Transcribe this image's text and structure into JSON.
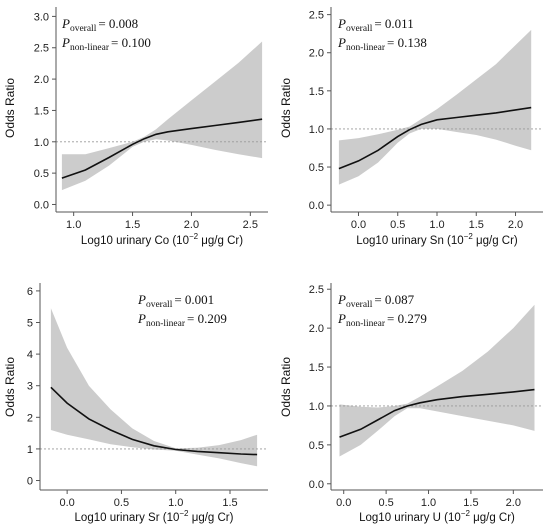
{
  "chart_data": [
    {
      "type": "line",
      "ylabel": "Odds Ratio",
      "xlabel_prefix": "Log10 urinary Co (10",
      "xlabel_suffix": " μg/g Cr)",
      "xlabel_sup": "−2",
      "xlim": [
        0.85,
        2.65
      ],
      "ylim": [
        -0.12,
        3.15
      ],
      "xticks": [
        1.0,
        1.5,
        2.0,
        2.5
      ],
      "xtick_labels": [
        "1.0",
        "1.5",
        "2.0",
        "2.5"
      ],
      "yticks": [
        0.0,
        0.5,
        1.0,
        1.5,
        2.0,
        2.5,
        3.0
      ],
      "ytick_labels": [
        "0.0",
        "0.5",
        "1.0",
        "1.5",
        "2.0",
        "2.5",
        "3.0"
      ],
      "reference_line": 1.0,
      "p_position": "top-left",
      "p_overall_label": "P",
      "p_overall_sub": "overall",
      "p_overall": "= 0.008",
      "p_nonlinear_label": "P",
      "p_nonlinear_sub": "non-linear",
      "p_nonlinear": "= 0.100",
      "x": [
        0.9,
        1.1,
        1.3,
        1.5,
        1.6,
        1.7,
        1.8,
        2.0,
        2.2,
        2.4,
        2.6
      ],
      "or": [
        0.42,
        0.55,
        0.75,
        0.96,
        1.05,
        1.12,
        1.16,
        1.21,
        1.26,
        1.31,
        1.36
      ],
      "lower": [
        0.23,
        0.38,
        0.62,
        0.92,
        1.0,
        1.04,
        1.02,
        0.95,
        0.87,
        0.8,
        0.74
      ],
      "upper": [
        0.8,
        0.8,
        0.9,
        1.0,
        1.08,
        1.2,
        1.36,
        1.66,
        1.96,
        2.26,
        2.6
      ]
    },
    {
      "type": "line",
      "ylabel": "Odds Ratio",
      "xlabel_prefix": "Log10 urinary Sn (10",
      "xlabel_suffix": " μg/g Cr)",
      "xlabel_sup": "−2",
      "xlim": [
        -0.35,
        2.35
      ],
      "ylim": [
        -0.09,
        2.6
      ],
      "xticks": [
        0.0,
        0.5,
        1.0,
        1.5,
        2.0
      ],
      "xtick_labels": [
        "0.0",
        "0.5",
        "1.0",
        "1.5",
        "2.0"
      ],
      "yticks": [
        0.0,
        0.5,
        1.0,
        1.5,
        2.0,
        2.5
      ],
      "ytick_labels": [
        "0.0",
        "0.5",
        "1.0",
        "1.5",
        "2.0",
        "2.5"
      ],
      "reference_line": 1.0,
      "p_position": "top-left",
      "p_overall_label": "P",
      "p_overall_sub": "overall",
      "p_overall": "= 0.011",
      "p_nonlinear_label": "P",
      "p_nonlinear_sub": "non-linear",
      "p_nonlinear": "= 0.138",
      "x": [
        -0.25,
        0.0,
        0.25,
        0.5,
        0.65,
        0.8,
        1.0,
        1.25,
        1.5,
        1.75,
        2.0,
        2.2
      ],
      "or": [
        0.48,
        0.58,
        0.72,
        0.9,
        0.99,
        1.06,
        1.12,
        1.15,
        1.18,
        1.21,
        1.25,
        1.28
      ],
      "lower": [
        0.27,
        0.38,
        0.56,
        0.82,
        0.94,
        1.0,
        1.0,
        0.96,
        0.92,
        0.86,
        0.78,
        0.72
      ],
      "upper": [
        0.85,
        0.88,
        0.93,
        0.99,
        1.03,
        1.13,
        1.26,
        1.45,
        1.65,
        1.85,
        2.1,
        2.3
      ]
    },
    {
      "type": "line",
      "ylabel": "Odds Ratio",
      "xlabel_prefix": "Log10 urinary Sr (10",
      "xlabel_suffix": " μg/g Cr)",
      "xlabel_sup": "−2",
      "xlim": [
        -0.25,
        1.85
      ],
      "ylim": [
        -0.3,
        6.25
      ],
      "xticks": [
        0.0,
        0.5,
        1.0,
        1.5
      ],
      "xtick_labels": [
        "0.0",
        "0.5",
        "1.0",
        "1.5"
      ],
      "yticks": [
        0,
        1,
        2,
        3,
        4,
        5,
        6
      ],
      "ytick_labels": [
        "0",
        "1",
        "2",
        "3",
        "4",
        "5",
        "6"
      ],
      "reference_line": 1.0,
      "p_position": "top-right",
      "p_overall_label": "P",
      "p_overall_sub": "overall",
      "p_overall": "= 0.001",
      "p_nonlinear_label": "P",
      "p_nonlinear_sub": "non-linear",
      "p_nonlinear": "= 0.209",
      "x": [
        -0.15,
        0.0,
        0.2,
        0.4,
        0.6,
        0.8,
        1.0,
        1.2,
        1.4,
        1.6,
        1.75
      ],
      "or": [
        2.95,
        2.45,
        1.95,
        1.6,
        1.3,
        1.1,
        0.98,
        0.92,
        0.88,
        0.84,
        0.82
      ],
      "lower": [
        1.6,
        1.45,
        1.3,
        1.15,
        1.05,
        0.98,
        0.94,
        0.82,
        0.7,
        0.55,
        0.45
      ],
      "upper": [
        5.45,
        4.2,
        3.0,
        2.25,
        1.65,
        1.25,
        1.02,
        1.04,
        1.12,
        1.28,
        1.45
      ]
    },
    {
      "type": "line",
      "ylabel": "Odds Ratio",
      "xlabel_prefix": "Log10 urinary U (10",
      "xlabel_suffix": " μg/g Cr)",
      "xlabel_sup": "−2",
      "xlim": [
        -0.15,
        2.35
      ],
      "ylim": [
        -0.08,
        2.58
      ],
      "xticks": [
        0.0,
        0.5,
        1.0,
        1.5,
        2.0
      ],
      "xtick_labels": [
        "0.0",
        "0.5",
        "1.0",
        "1.5",
        "2.0"
      ],
      "yticks": [
        0.0,
        0.5,
        1.0,
        1.5,
        2.0,
        2.5
      ],
      "ytick_labels": [
        "0.0",
        "0.5",
        "1.0",
        "1.5",
        "2.0",
        "2.5"
      ],
      "reference_line": 1.0,
      "p_position": "top-left",
      "p_overall_label": "P",
      "p_overall_sub": "overall",
      "p_overall": "= 0.087",
      "p_nonlinear_label": "P",
      "p_nonlinear_sub": "non-linear",
      "p_nonlinear": "= 0.279",
      "x": [
        -0.05,
        0.2,
        0.4,
        0.6,
        0.75,
        0.9,
        1.1,
        1.4,
        1.7,
        2.0,
        2.25
      ],
      "or": [
        0.6,
        0.7,
        0.82,
        0.94,
        1.0,
        1.04,
        1.08,
        1.12,
        1.15,
        1.18,
        1.21
      ],
      "lower": [
        0.35,
        0.5,
        0.68,
        0.87,
        0.97,
        0.97,
        0.93,
        0.87,
        0.81,
        0.75,
        0.68
      ],
      "upper": [
        1.02,
        0.99,
        0.98,
        1.0,
        1.03,
        1.12,
        1.25,
        1.45,
        1.7,
        2.0,
        2.3
      ]
    }
  ],
  "colors": {
    "band": "#cccccc",
    "line": "#111111",
    "refline": "#999999",
    "axis": "#555555"
  }
}
